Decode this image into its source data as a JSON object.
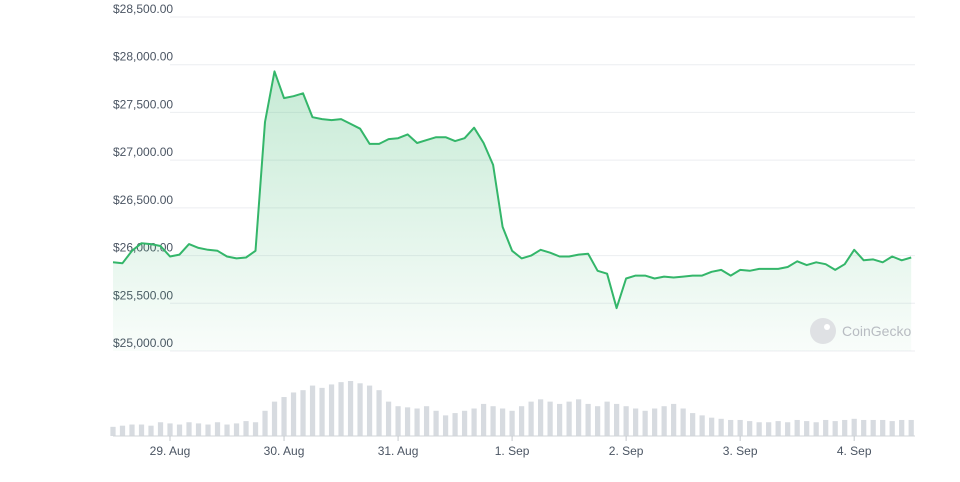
{
  "chart_data": {
    "type": "line",
    "series": [
      {
        "color": "#34b66a",
        "values": [
          25930,
          25920,
          26050,
          26130,
          26120,
          26100,
          25990,
          26010,
          26120,
          26080,
          26060,
          26050,
          25990,
          25970,
          25980,
          26050,
          27400,
          27930,
          27650,
          27670,
          27700,
          27450,
          27430,
          27420,
          27430,
          27380,
          27330,
          27170,
          27170,
          27220,
          27230,
          27270,
          27180,
          27210,
          27240,
          27240,
          27200,
          27230,
          27340,
          27180,
          26950,
          26300,
          26050,
          25970,
          26000,
          26060,
          26030,
          25990,
          25990,
          26010,
          26020,
          25840,
          25810,
          25450,
          25760,
          25790,
          25790,
          25760,
          25780,
          25770,
          25780,
          25790,
          25790,
          25830,
          25850,
          25790,
          25850,
          25840,
          25860,
          25860,
          25860,
          25880,
          25940,
          25900,
          25930,
          25910,
          25850,
          25910,
          26060,
          25950,
          25960,
          25930,
          25990,
          25950,
          25980
        ]
      }
    ],
    "volume": {
      "color": "#d7dbe0",
      "values": [
        8,
        9,
        10,
        10,
        9,
        12,
        11,
        10,
        12,
        11,
        10,
        12,
        10,
        11,
        13,
        12,
        22,
        30,
        34,
        38,
        40,
        44,
        42,
        45,
        47,
        48,
        46,
        44,
        40,
        30,
        26,
        25,
        24,
        26,
        22,
        18,
        20,
        22,
        24,
        28,
        26,
        24,
        22,
        26,
        30,
        32,
        30,
        28,
        30,
        32,
        28,
        26,
        30,
        28,
        26,
        24,
        22,
        24,
        26,
        28,
        24,
        20,
        18,
        16,
        15,
        14,
        14,
        13,
        12,
        12,
        13,
        12,
        14,
        13,
        12,
        14,
        13,
        14,
        15,
        14,
        14,
        14,
        13,
        14,
        14
      ]
    },
    "xlim": [
      0,
      84.4
    ],
    "xticks": [
      {
        "value": 6,
        "label": "29. Aug"
      },
      {
        "value": 18,
        "label": "30. Aug"
      },
      {
        "value": 30,
        "label": "31. Aug"
      },
      {
        "value": 42,
        "label": "1. Sep"
      },
      {
        "value": 54,
        "label": "2. Sep"
      },
      {
        "value": 66,
        "label": "3. Sep"
      },
      {
        "value": 78,
        "label": "4. Sep"
      }
    ],
    "ylim": [
      25000,
      28500
    ],
    "yticks": [
      {
        "value": 25000,
        "label": "$25,000.00"
      },
      {
        "value": 25500,
        "label": "$25,500.00"
      },
      {
        "value": 26000,
        "label": "$26,000.00"
      },
      {
        "value": 26500,
        "label": "$26,500.00"
      },
      {
        "value": 27000,
        "label": "$27,000.00"
      },
      {
        "value": 27500,
        "label": "$27,500.00"
      },
      {
        "value": 28000,
        "label": "$28,000.00"
      },
      {
        "value": 28500,
        "label": "$28,500.00"
      }
    ],
    "grid": true,
    "watermark": "CoinGecko"
  }
}
